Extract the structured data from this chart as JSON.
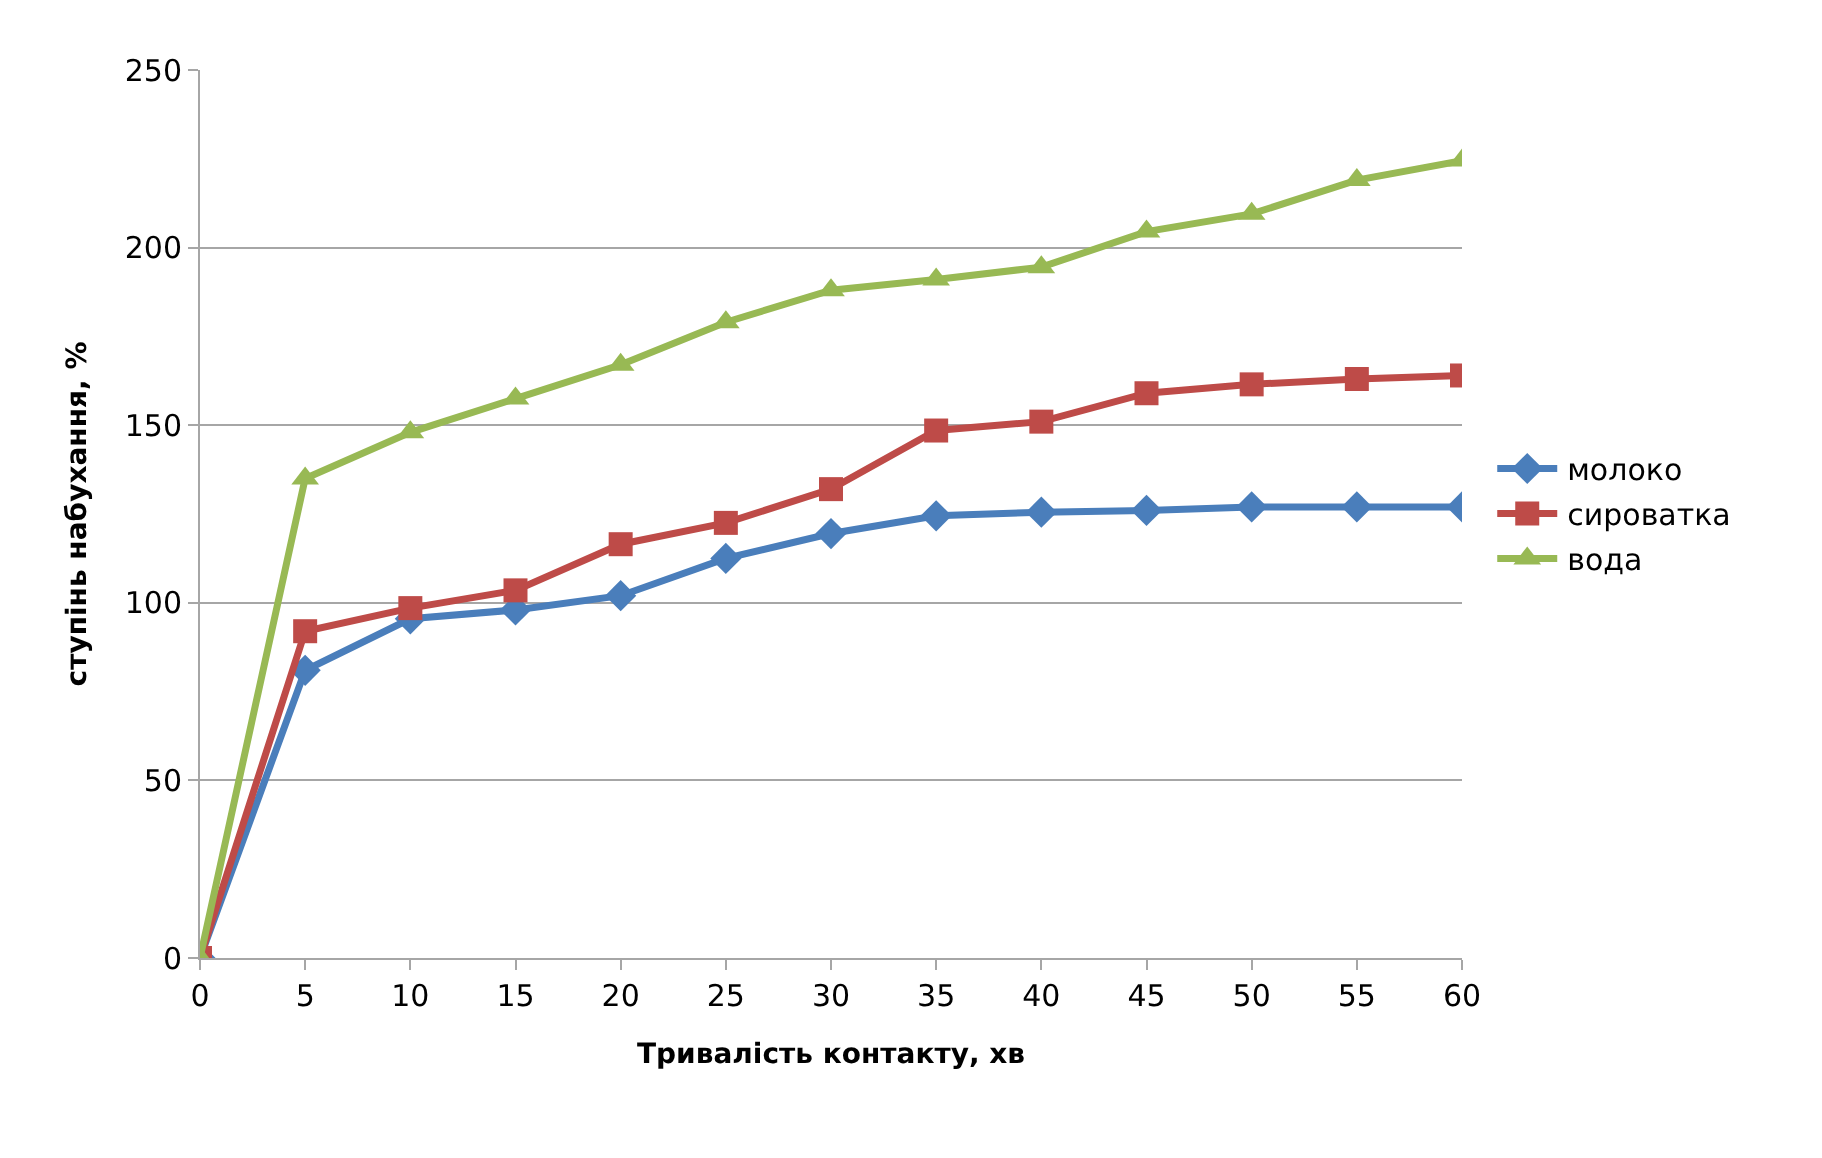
{
  "chart_data": {
    "type": "line",
    "xlabel": "Тривалість контакту, хв",
    "ylabel": "ступінь набухання, %",
    "x": [
      0,
      5,
      10,
      15,
      20,
      25,
      30,
      35,
      40,
      45,
      50,
      55,
      60
    ],
    "series": [
      {
        "name": "молоко",
        "color": "#4a7ebb",
        "marker": "diamond",
        "values": [
          0,
          81,
          95.5,
          98,
          102,
          112.5,
          119.5,
          124.5,
          125.5,
          126,
          127,
          127,
          127
        ]
      },
      {
        "name": "сироватка",
        "color": "#be4b48",
        "marker": "square",
        "values": [
          0,
          92,
          98.5,
          103.5,
          116.5,
          122.5,
          132,
          148.5,
          151,
          159,
          161.5,
          163,
          164
        ]
      },
      {
        "name": "вода",
        "color": "#98b954",
        "marker": "triangle",
        "values": [
          0,
          135,
          148,
          157.5,
          167,
          179,
          188,
          191,
          194.5,
          204.5,
          209.5,
          219,
          224.5
        ]
      }
    ],
    "xlim": [
      0,
      60
    ],
    "xticks": [
      0,
      5,
      10,
      15,
      20,
      25,
      30,
      35,
      40,
      45,
      50,
      55,
      60
    ],
    "ylim": [
      0,
      250
    ],
    "yticks": [
      0,
      50,
      100,
      150,
      200,
      250
    ],
    "grid": "y",
    "legend": "right",
    "line_style": "solid"
  }
}
